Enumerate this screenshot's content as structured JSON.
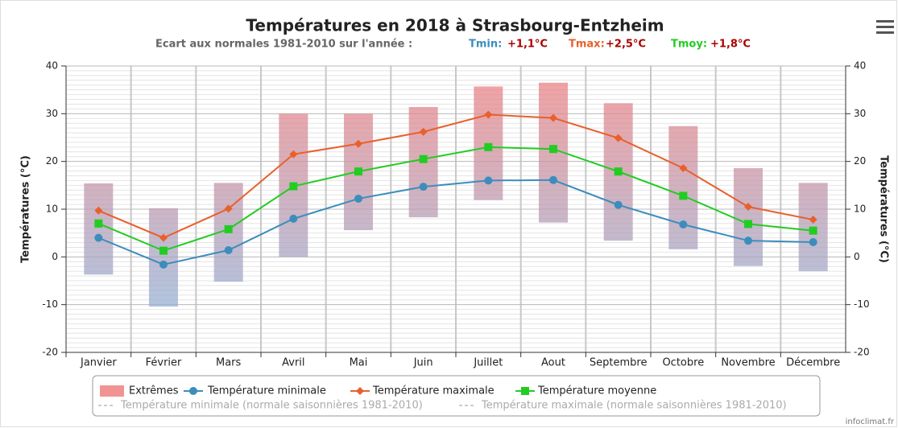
{
  "chart_data": {
    "type": "line",
    "title": "Températures en 2018 à Strasbourg-Entzheim",
    "subtitle": "Ecart aux normales 1981-2010 sur l'année :",
    "anomalies": [
      {
        "name": "Tmin:",
        "value": "+1,1°C",
        "color": "#3c8dbc"
      },
      {
        "name": "Tmax:",
        "value": "+2,5°C",
        "color": "#e8602c"
      },
      {
        "name": "Tmoy:",
        "value": "+1,8°C",
        "color": "#22cc22"
      }
    ],
    "ylabel": "Températures (°C)",
    "y2label": "Températures (°C)",
    "categories": [
      "Janvier",
      "Février",
      "Mars",
      "Avril",
      "Mai",
      "Juin",
      "Juillet",
      "Aout",
      "Septembre",
      "Octobre",
      "Novembre",
      "Décembre"
    ],
    "ylim": [
      -20,
      40
    ],
    "yticks": [
      -20,
      -10,
      0,
      10,
      20,
      30,
      40
    ],
    "y2lim": [
      -20,
      40
    ],
    "y2ticks": [
      -20,
      -10,
      0,
      10,
      20,
      30,
      40
    ],
    "extremes": {
      "name": "Extrêmes",
      "color": "#f08080",
      "low": [
        -3.7,
        -10.4,
        -5.2,
        0,
        5.6,
        8.3,
        11.9,
        7.2,
        3.4,
        1.6,
        -1.9,
        -3.0
      ],
      "high": [
        15.4,
        10.2,
        15.5,
        30.0,
        30.0,
        31.4,
        35.7,
        36.5,
        32.2,
        27.4,
        18.6,
        15.5
      ]
    },
    "series": [
      {
        "name": "Température minimale",
        "color": "#3c8dbc",
        "marker": "circle",
        "values": [
          4.0,
          -1.6,
          1.4,
          8.0,
          12.2,
          14.7,
          16.0,
          16.1,
          10.9,
          6.8,
          3.4,
          3.1
        ]
      },
      {
        "name": "Température maximale",
        "color": "#e8602c",
        "marker": "diamond",
        "values": [
          9.7,
          4.0,
          10.1,
          21.5,
          23.7,
          26.2,
          29.8,
          29.1,
          24.9,
          18.6,
          10.5,
          7.8
        ]
      },
      {
        "name": "Température moyenne",
        "color": "#22cc22",
        "marker": "square",
        "values": [
          7.0,
          1.3,
          5.8,
          14.8,
          17.9,
          20.5,
          23.0,
          22.6,
          17.9,
          12.8,
          6.9,
          5.5
        ]
      }
    ],
    "normals": [
      {
        "name": "Température minimale (normale saisonnières 1981-2010)"
      },
      {
        "name": "Température maximale (normale saisonnières 1981-2010)"
      }
    ],
    "credit": "infoclimat.fr",
    "grid": true
  }
}
